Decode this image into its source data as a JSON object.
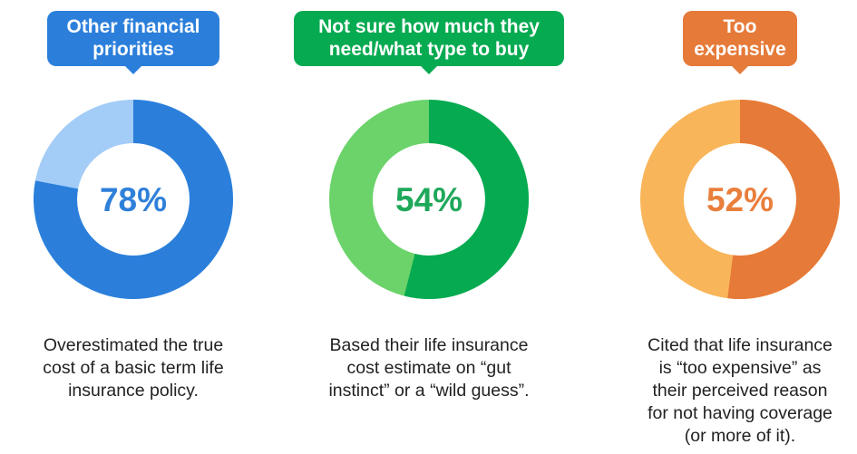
{
  "chart_data": [
    {
      "type": "pie",
      "title": "Other financial\npriorities",
      "values": [
        78
      ],
      "value_label": "78%",
      "caption": "Overestimated the true\ncost of a basic term life\ninsurance policy.",
      "colors": {
        "accent": "#2B7FDB",
        "light": "#A3CCF7",
        "text": "#2F80D9"
      }
    },
    {
      "type": "pie",
      "title": "Not sure how much they\nneed/what type to buy",
      "values": [
        54
      ],
      "value_label": "54%",
      "caption": "Based their life insurance\ncost estimate on “gut\ninstinct” or a “wild guess”.",
      "colors": {
        "accent": "#06AA51",
        "light": "#6BD36A",
        "text": "#1FA85A"
      }
    },
    {
      "type": "pie",
      "title": "Too\nexpensive",
      "values": [
        52
      ],
      "value_label": "52%",
      "caption": "Cited that life insurance\nis “too expensive” as\ntheir perceived reason\nfor not having coverage\n(or more of it).",
      "colors": {
        "accent": "#E67A38",
        "light": "#F9B55A",
        "text": "#E97F3C"
      }
    }
  ]
}
